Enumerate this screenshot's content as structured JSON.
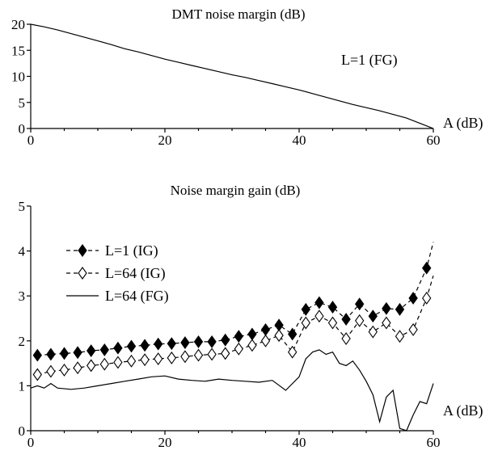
{
  "chart_data": [
    {
      "type": "line",
      "title": "DMT noise margin (dB)",
      "xlabel": "A (dB)",
      "ylabel": "",
      "xlim": [
        0,
        60
      ],
      "ylim": [
        0,
        20
      ],
      "xticks": [
        "0",
        "20",
        "40",
        "60"
      ],
      "yticks": [
        "0",
        "5",
        "10",
        "15",
        "20"
      ],
      "annotation": "L=1  (FG)",
      "grid": false,
      "series": [
        {
          "x": [
            0,
            2,
            4,
            6,
            8,
            10,
            12,
            14,
            16,
            18,
            20,
            22,
            24,
            26,
            28,
            30,
            32,
            34,
            36,
            38,
            40,
            42,
            44,
            46,
            48,
            50,
            52,
            54,
            56,
            58,
            59,
            60
          ],
          "values": [
            20,
            19.5,
            18.9,
            18.2,
            17.5,
            16.8,
            16.1,
            15.3,
            14.7,
            14.0,
            13.3,
            12.7,
            12.1,
            11.5,
            10.9,
            10.3,
            9.8,
            9.2,
            8.6,
            8.0,
            7.4,
            6.7,
            6.0,
            5.3,
            4.6,
            4.0,
            3.4,
            2.7,
            2.0,
            1.0,
            0.5,
            0
          ]
        }
      ]
    },
    {
      "type": "line",
      "title": "Noise margin gain (dB)",
      "xlabel": "A (dB)",
      "ylabel": "",
      "xlim": [
        0,
        60
      ],
      "ylim": [
        0,
        5
      ],
      "xticks": [
        "0",
        "20",
        "40",
        "60"
      ],
      "yticks": [
        "0",
        "1",
        "2",
        "3",
        "4",
        "5"
      ],
      "legend_position": "upper-left",
      "grid": false,
      "series": [
        {
          "name": "L=1  (IG)",
          "marker": "filled-diamond",
          "line": "dashed",
          "x": [
            1,
            3,
            5,
            7,
            9,
            11,
            13,
            15,
            17,
            19,
            21,
            23,
            25,
            27,
            29,
            31,
            33,
            35,
            37,
            39,
            41,
            43,
            45,
            47,
            49,
            51,
            53,
            55,
            57,
            59,
            60
          ],
          "values": [
            1.68,
            1.7,
            1.72,
            1.74,
            1.78,
            1.8,
            1.84,
            1.88,
            1.9,
            1.93,
            1.94,
            1.96,
            1.98,
            1.98,
            2.02,
            2.1,
            2.15,
            2.25,
            2.35,
            2.15,
            2.7,
            2.85,
            2.75,
            2.48,
            2.82,
            2.55,
            2.72,
            2.7,
            2.95,
            3.62,
            4.2
          ]
        },
        {
          "name": "L=64 (IG)",
          "marker": "open-diamond",
          "line": "dashed",
          "x": [
            1,
            3,
            5,
            7,
            9,
            11,
            13,
            15,
            17,
            19,
            21,
            23,
            25,
            27,
            29,
            31,
            33,
            35,
            37,
            39,
            41,
            43,
            45,
            47,
            49,
            51,
            53,
            55,
            57,
            59,
            60
          ],
          "values": [
            1.25,
            1.32,
            1.35,
            1.4,
            1.45,
            1.48,
            1.52,
            1.55,
            1.58,
            1.6,
            1.62,
            1.65,
            1.68,
            1.7,
            1.72,
            1.82,
            1.9,
            2.0,
            2.12,
            1.75,
            2.4,
            2.55,
            2.4,
            2.05,
            2.45,
            2.2,
            2.4,
            2.1,
            2.25,
            2.95,
            3.45
          ]
        },
        {
          "name": "L=64 (FG)",
          "marker": "none",
          "line": "solid",
          "x": [
            0,
            1,
            2,
            3,
            4,
            6,
            8,
            10,
            12,
            14,
            16,
            18,
            20,
            22,
            24,
            26,
            28,
            30,
            32,
            34,
            36,
            38,
            40,
            41,
            42,
            43,
            44,
            45,
            46,
            47,
            48,
            49,
            50,
            51,
            52,
            53,
            54,
            55,
            56,
            57,
            58,
            59,
            60
          ],
          "values": [
            0.95,
            1.0,
            0.95,
            1.05,
            0.95,
            0.92,
            0.95,
            1.0,
            1.05,
            1.1,
            1.15,
            1.2,
            1.22,
            1.15,
            1.12,
            1.1,
            1.15,
            1.12,
            1.1,
            1.08,
            1.12,
            0.9,
            1.2,
            1.6,
            1.75,
            1.8,
            1.7,
            1.75,
            1.5,
            1.45,
            1.55,
            1.35,
            1.1,
            0.8,
            0.2,
            0.75,
            0.9,
            0.05,
            0.0,
            0.35,
            0.65,
            0.6,
            1.05
          ]
        }
      ]
    }
  ]
}
